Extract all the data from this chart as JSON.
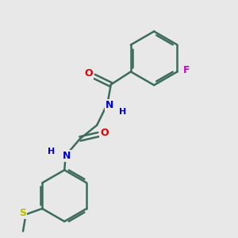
{
  "background_color": "#e8e8e8",
  "bond_color": "#3d6b5e",
  "bond_width": 1.8,
  "atom_colors": {
    "O": "#dd0000",
    "N": "#0000cc",
    "F": "#cc00cc",
    "S": "#bbbb00",
    "H": "#0000cc"
  },
  "font_size": 9,
  "figsize": [
    3.0,
    3.0
  ],
  "dpi": 100
}
